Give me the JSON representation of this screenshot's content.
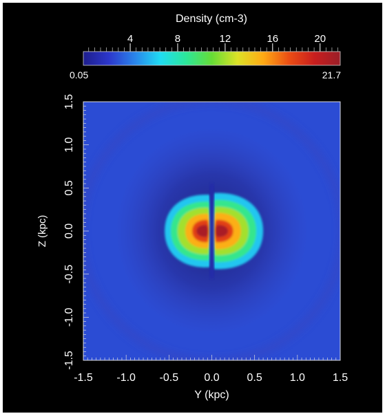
{
  "chart_data": {
    "type": "heatmap",
    "colorbar": {
      "title": "Density (cm-3)",
      "min_label": "0.05",
      "max_label": "21.7",
      "range": [
        0.05,
        21.7
      ],
      "ticks": [
        4,
        8,
        12,
        16,
        20
      ],
      "tick_labels": [
        "4",
        "8",
        "12",
        "16",
        "20"
      ],
      "colormap": [
        "#1e1e8c",
        "#2c37cc",
        "#2a84ea",
        "#20dcf2",
        "#2ce79a",
        "#66dd36",
        "#dce227",
        "#ffaa14",
        "#ec4e14",
        "#c81e1e",
        "#9a1e28"
      ]
    },
    "xlabel": "Y (kpc)",
    "ylabel": "Z (kpc)",
    "xlim": [
      -1.5,
      1.5
    ],
    "ylim": [
      -1.5,
      1.5
    ],
    "xticks": [
      -1.5,
      -1.0,
      -0.5,
      0.0,
      0.5,
      1.0,
      1.5
    ],
    "xtick_labels": [
      "-1.5",
      "-1.0",
      "-0.5",
      "0.0",
      "0.5",
      "1.0",
      "1.5"
    ],
    "yticks": [
      -1.5,
      -1.0,
      -0.5,
      0.0,
      0.5,
      1.0,
      1.5
    ],
    "ytick_labels": [
      "-1.5",
      "-1.0",
      "-0.5",
      "0.0",
      "0.5",
      "1.0",
      "1.5"
    ],
    "background_value": 2.8,
    "lobes": [
      {
        "side": "left",
        "peak_value": 21.7,
        "peak_at": [
          -0.12,
          0.0
        ],
        "contours": [
          {
            "value": 6,
            "y_extent": [
              -0.55,
              -0.02
            ],
            "z_extent": [
              -0.42,
              0.42
            ]
          },
          {
            "value": 9,
            "y_extent": [
              -0.48,
              -0.03
            ],
            "z_extent": [
              -0.34,
              0.34
            ]
          },
          {
            "value": 12,
            "y_extent": [
              -0.4,
              -0.04
            ],
            "z_extent": [
              -0.27,
              0.27
            ]
          },
          {
            "value": 15,
            "y_extent": [
              -0.31,
              -0.04
            ],
            "z_extent": [
              -0.2,
              0.2
            ]
          },
          {
            "value": 18,
            "y_extent": [
              -0.23,
              -0.05
            ],
            "z_extent": [
              -0.13,
              0.13
            ]
          },
          {
            "value": 21,
            "y_extent": [
              -0.18,
              -0.06
            ],
            "z_extent": [
              -0.07,
              0.07
            ]
          }
        ]
      },
      {
        "side": "right",
        "peak_value": 21.7,
        "peak_at": [
          0.12,
          0.0
        ],
        "contours": [
          {
            "value": 6,
            "y_extent": [
              0.02,
              0.6
            ],
            "z_extent": [
              -0.44,
              0.44
            ]
          },
          {
            "value": 9,
            "y_extent": [
              0.03,
              0.52
            ],
            "z_extent": [
              -0.36,
              0.36
            ]
          },
          {
            "value": 12,
            "y_extent": [
              0.04,
              0.43
            ],
            "z_extent": [
              -0.28,
              0.28
            ]
          },
          {
            "value": 15,
            "y_extent": [
              0.04,
              0.34
            ],
            "z_extent": [
              -0.21,
              0.21
            ]
          },
          {
            "value": 18,
            "y_extent": [
              0.05,
              0.25
            ],
            "z_extent": [
              -0.13,
              0.13
            ]
          },
          {
            "value": 21,
            "y_extent": [
              0.06,
              0.19
            ],
            "z_extent": [
              -0.07,
              0.07
            ]
          }
        ]
      }
    ],
    "central_gap": {
      "value": 1.0,
      "y_extent": [
        -0.025,
        0.025
      ],
      "z_extent": [
        -0.55,
        0.55
      ]
    }
  }
}
